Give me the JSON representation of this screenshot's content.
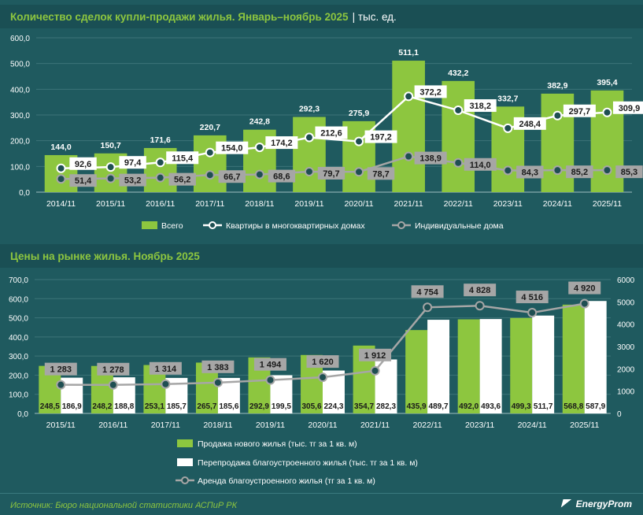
{
  "chart1": {
    "title": "Количество сделок купли-продажи жилья. Январь–ноябрь 2025",
    "unit": "| тыс. ед.",
    "type": "bar+line",
    "categories": [
      "2014/11",
      "2015/11",
      "2016/11",
      "2017/11",
      "2018/11",
      "2019/11",
      "2020/11",
      "2021/11",
      "2022/11",
      "2023/11",
      "2024/11",
      "2025/11"
    ],
    "yticks": [
      "0,0",
      "100,0",
      "200,0",
      "300,0",
      "400,0",
      "500,0",
      "600,0"
    ],
    "ylim": [
      0,
      600
    ],
    "series": [
      {
        "name": "Всего",
        "values": [
          144.0,
          150.7,
          171.6,
          220.7,
          242.8,
          292.3,
          275.9,
          511.1,
          432.2,
          332.7,
          382.9,
          395.4
        ],
        "labels": [
          "144,0",
          "150,7",
          "171,6",
          "220,7",
          "242,8",
          "292,3",
          "275,9",
          "511,1",
          "432,2",
          "332,7",
          "382,9",
          "395,4"
        ]
      },
      {
        "name": "Квартиры в многоквартирных домах",
        "values": [
          92.6,
          97.4,
          115.4,
          154.0,
          174.2,
          212.6,
          197.2,
          372.2,
          318.2,
          248.4,
          297.7,
          309.9
        ],
        "labels": [
          "92,6",
          "97,4",
          "115,4",
          "154,0",
          "174,2",
          "212,6",
          "197,2",
          "372,2",
          "318,2",
          "248,4",
          "297,7",
          "309,9"
        ]
      },
      {
        "name": "Индивидуальные дома",
        "values": [
          51.4,
          53.2,
          56.2,
          66.7,
          68.6,
          79.7,
          78.7,
          138.9,
          114.0,
          84.3,
          85.2,
          85.3
        ],
        "labels": [
          "51,4",
          "53,2",
          "56,2",
          "66,7",
          "68,6",
          "79,7",
          "78,7",
          "138,9",
          "114,0",
          "84,3",
          "85,2",
          "85,3"
        ]
      }
    ]
  },
  "chart2": {
    "title": "Цены на рынке жилья. Ноябрь 2025",
    "type": "bar+line",
    "categories": [
      "2015/11",
      "2016/11",
      "2017/11",
      "2018/11",
      "2019/11",
      "2020/11",
      "2021/11",
      "2022/11",
      "2023/11",
      "2024/11",
      "2025/11"
    ],
    "yticks_left": [
      "0,0",
      "100,0",
      "200,0",
      "300,0",
      "400,0",
      "500,0",
      "600,0",
      "700,0"
    ],
    "ylim_left": [
      0,
      700
    ],
    "yticks_right": [
      "0",
      "1000",
      "2000",
      "3000",
      "4000",
      "5000",
      "6000"
    ],
    "ylim_right": [
      0,
      6000
    ],
    "series": [
      {
        "name": "Продажа нового жилья (тыс. тг за 1 кв. м)",
        "axis": "left",
        "values": [
          248.5,
          248.2,
          253.1,
          265.7,
          292.9,
          305.6,
          354.7,
          435.9,
          492.0,
          499.3,
          568.8
        ],
        "labels": [
          "248,5",
          "248,2",
          "253,1",
          "265,7",
          "292,9",
          "305,6",
          "354,7",
          "435,9",
          "492,0",
          "499,3",
          "568,8"
        ]
      },
      {
        "name": "Перепродажа благоустроенного жилья (тыс. тг за 1 кв. м)",
        "axis": "left",
        "values": [
          186.9,
          188.8,
          185.7,
          185.6,
          199.5,
          224.3,
          282.3,
          489.7,
          493.6,
          511.7,
          587.9
        ],
        "labels": [
          "186,9",
          "188,8",
          "185,7",
          "185,6",
          "199,5",
          "224,3",
          "282,3",
          "489,7",
          "493,6",
          "511,7",
          "587,9"
        ]
      },
      {
        "name": "Аренда благоустроенного жилья (тг за 1 кв. м)",
        "axis": "right",
        "values": [
          1283,
          1278,
          1314,
          1383,
          1494,
          1620,
          1912,
          4754,
          4828,
          4516,
          4920
        ],
        "labels": [
          "1 283",
          "1 278",
          "1 314",
          "1 383",
          "1 494",
          "1 620",
          "1 912",
          "4 754",
          "4 828",
          "4 516",
          "4 920"
        ]
      }
    ]
  },
  "colors": {
    "green": "#8dc63f",
    "white": "#ffffff",
    "gray": "#a6a6a6",
    "dark": "#1f4f52"
  },
  "footer": {
    "source": "Источник: Бюро национальной статистики АСПиР РК",
    "brand": "EnergyProm"
  }
}
